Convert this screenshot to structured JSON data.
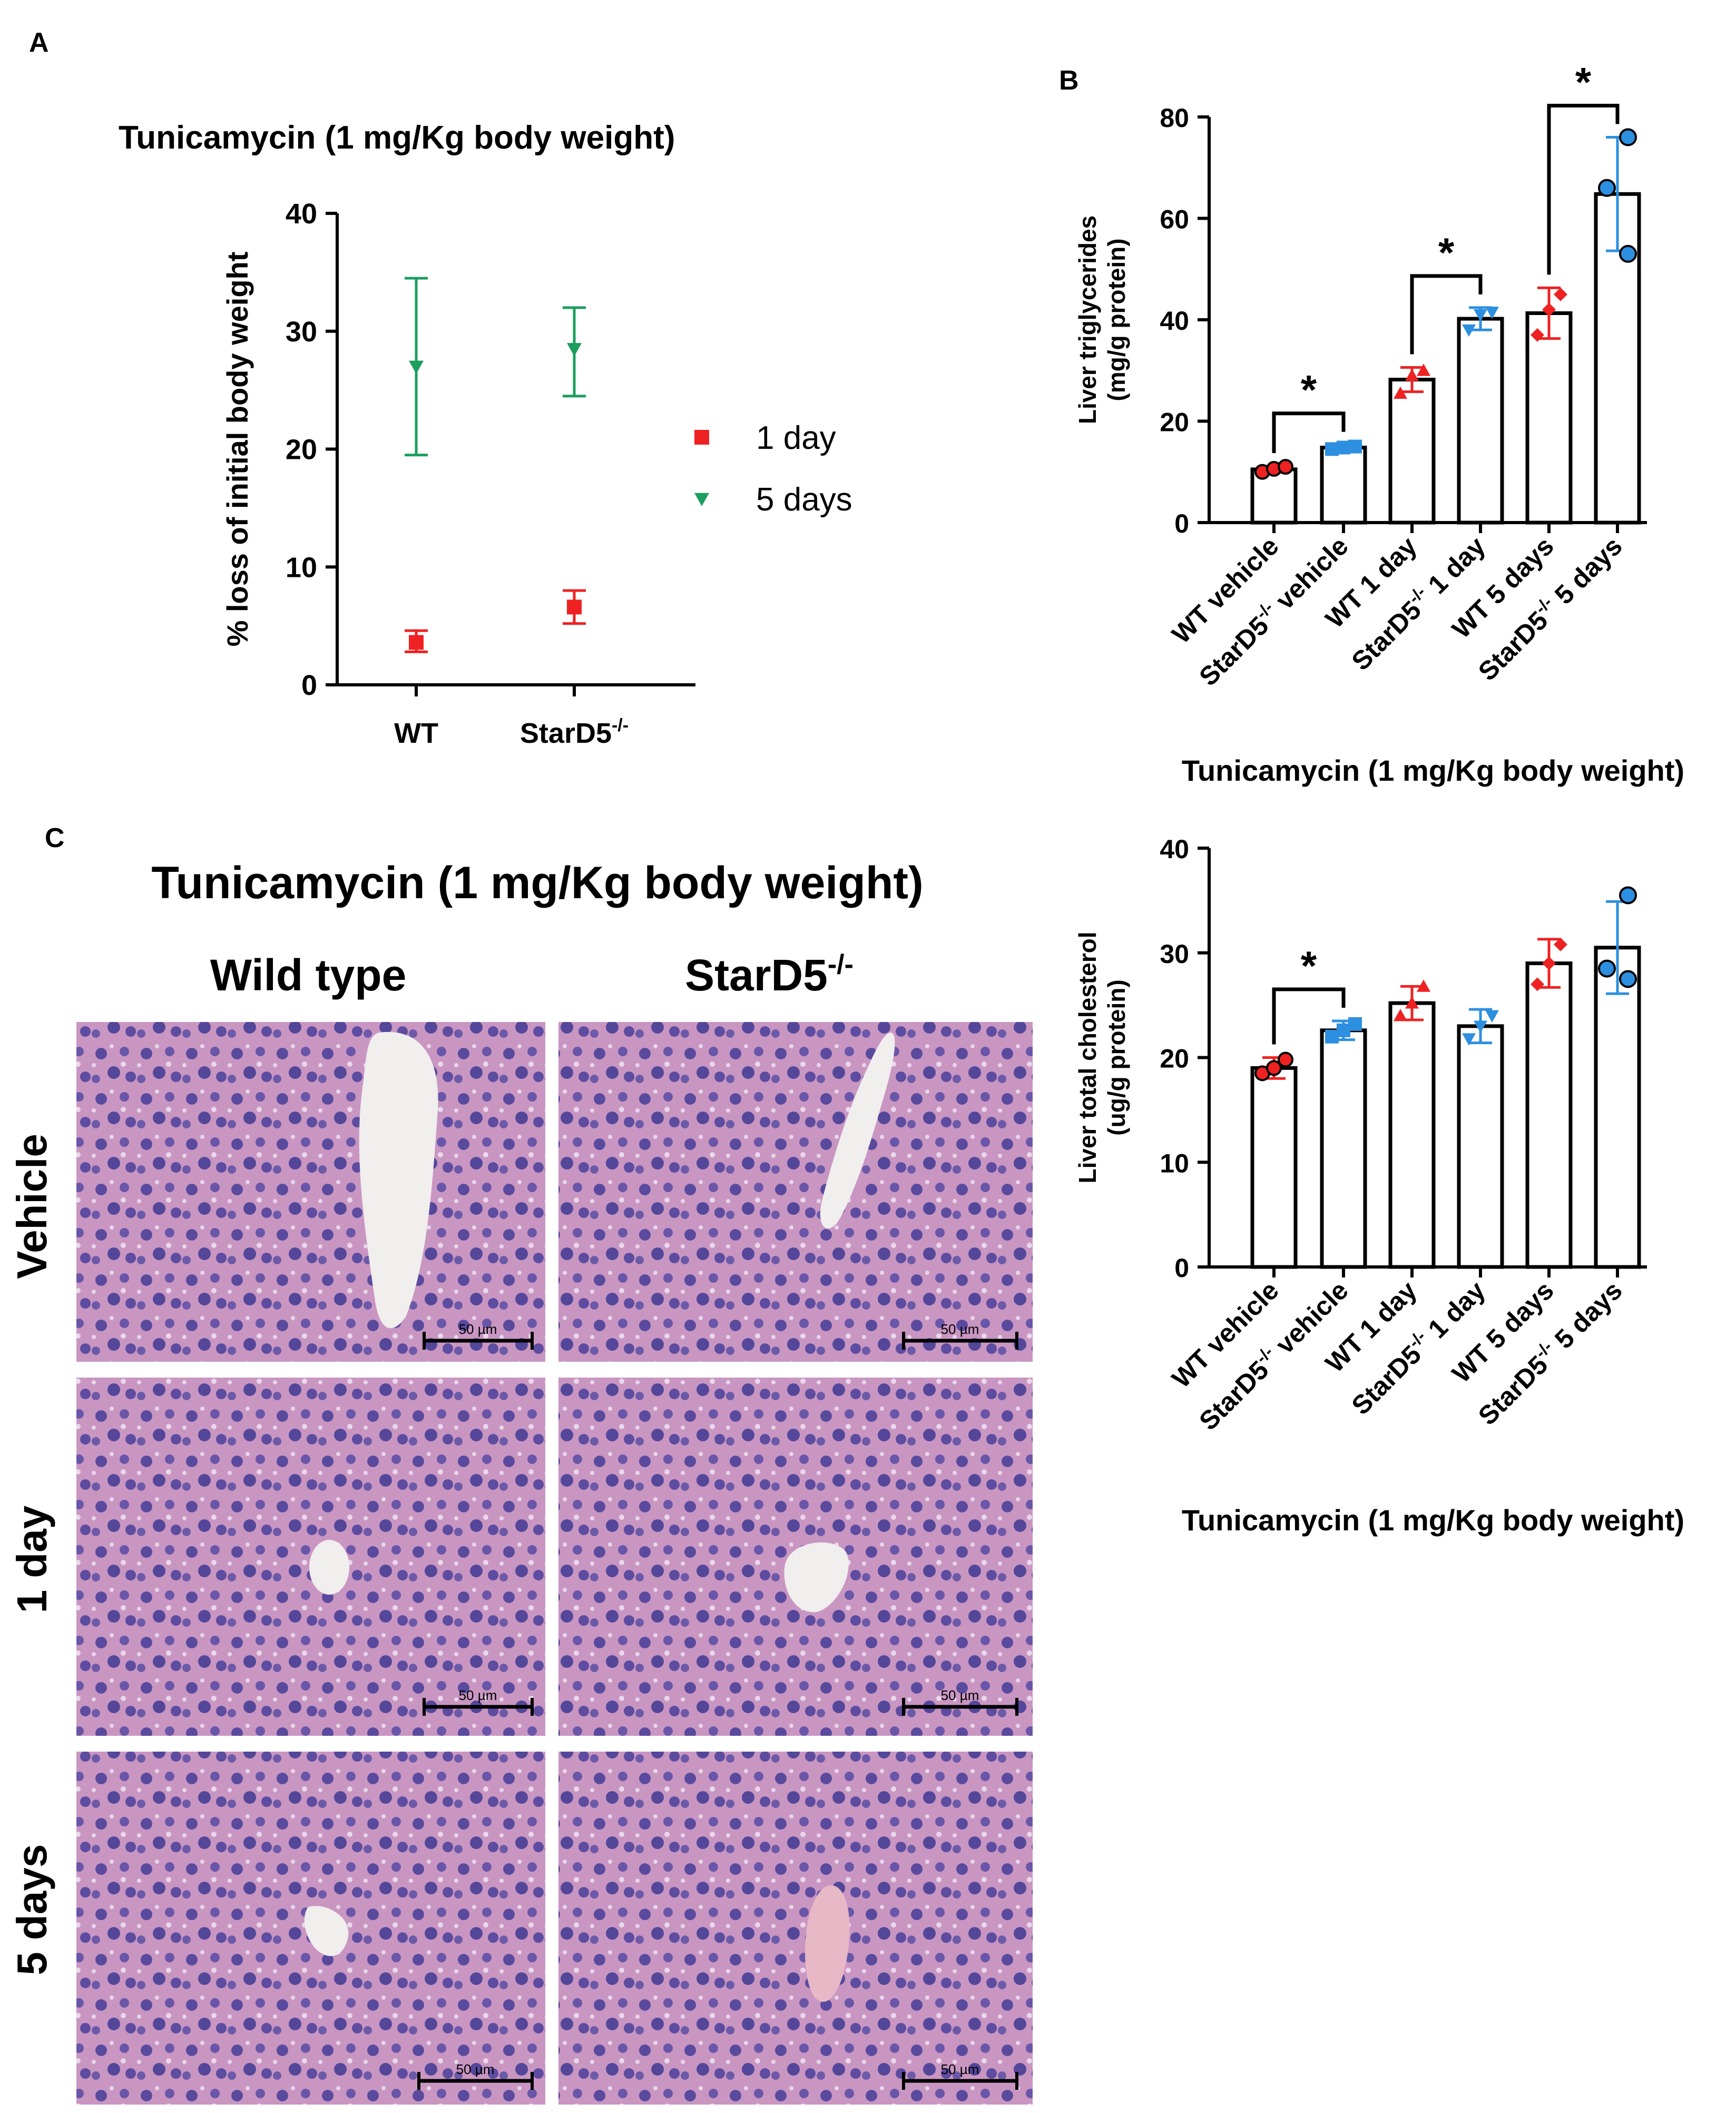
{
  "figure": {
    "panel_letters": [
      "A",
      "B",
      "C"
    ],
    "histology": {
      "title": "Tunicamycin (1 mg/Kg body weight)",
      "columns": [
        "Wild type",
        "StarD5"
      ],
      "column_sup": "-/-",
      "rows": [
        "Vehicle",
        "1 day",
        "5 days"
      ],
      "scale_bar": "50 µm"
    }
  },
  "colors": {
    "red": "#ee2222",
    "green": "#1b9e5e",
    "blue": "#2d8fe0",
    "tissue": "#c98fbf"
  },
  "chart_data": [
    {
      "id": "A",
      "type": "scatter",
      "title": "Tunicamycin (1 mg/Kg body weight)",
      "xlabel": "",
      "ylabel": "% loss of initial body weight",
      "categories": [
        "WT",
        "StarD5"
      ],
      "category_sup": [
        "",
        "-/-"
      ],
      "ylim": [
        0,
        40
      ],
      "yticks": [
        0,
        10,
        20,
        30,
        40
      ],
      "legend": "right",
      "series": [
        {
          "name": "1 day",
          "marker": "square",
          "color": "#ee2222",
          "values": [
            3.6,
            6.6
          ],
          "err_low": [
            2.8,
            5.2
          ],
          "err_high": [
            4.6,
            8.0
          ]
        },
        {
          "name": "5 days",
          "marker": "triangle-down",
          "color": "#1b9e5e",
          "values": [
            27.0,
            28.5
          ],
          "err_low": [
            19.5,
            24.5
          ],
          "err_high": [
            34.5,
            32.0
          ]
        }
      ]
    },
    {
      "id": "B",
      "type": "bar",
      "title": "",
      "xlabel": "Tunicamycin (1 mg/Kg body weight)",
      "ylabel": "Liver triglycerides",
      "ylabel2": "(mg/g protein)",
      "categories": [
        {
          "pre": "WT vehicle",
          "sup": "",
          "post": ""
        },
        {
          "pre": "StarD5",
          "sup": "-/-",
          "post": " vehicle"
        },
        {
          "pre": "WT 1 day",
          "sup": "",
          "post": ""
        },
        {
          "pre": "StarD5",
          "sup": "-/-",
          "post": " 1 day"
        },
        {
          "pre": "WT 5 days",
          "sup": "",
          "post": ""
        },
        {
          "pre": "StarD5",
          "sup": "-/-",
          "post": " 5 days"
        }
      ],
      "ylim": [
        0,
        80
      ],
      "yticks": [
        0,
        20,
        40,
        60,
        80
      ],
      "values": [
        10.5,
        14.8,
        28.2,
        40.2,
        41.3,
        64.8
      ],
      "errors": [
        0.6,
        0.5,
        2.4,
        2.2,
        5.0,
        11.2
      ],
      "points": [
        [
          10.0,
          10.6,
          11.0
        ],
        [
          14.5,
          14.8,
          15.0
        ],
        [
          25.5,
          29.0,
          30.0
        ],
        [
          38.0,
          41.0,
          41.5
        ],
        [
          37.0,
          42.0,
          45.0
        ],
        [
          53.0,
          66.0,
          76.0
        ]
      ],
      "point_colors": [
        "#ee2222",
        "#2d8fe0",
        "#ee2222",
        "#2d8fe0",
        "#ee2222",
        "#2d8fe0"
      ],
      "point_markers": [
        "circle",
        "square",
        "triangle-up",
        "triangle-down",
        "diamond",
        "circle"
      ],
      "significance": [
        {
          "pair": [
            0,
            1
          ],
          "label": "*"
        },
        {
          "pair": [
            2,
            3
          ],
          "label": "*"
        },
        {
          "pair": [
            4,
            5
          ],
          "label": "*"
        }
      ]
    },
    {
      "id": "C",
      "type": "bar",
      "title": "",
      "xlabel": "Tunicamycin (1 mg/Kg body weight)",
      "ylabel": "Liver total cholesterol",
      "ylabel2": "(ug/g protein)",
      "categories": [
        {
          "pre": "WT vehicle",
          "sup": "",
          "post": ""
        },
        {
          "pre": "StarD5",
          "sup": "-/-",
          "post": " vehicle"
        },
        {
          "pre": "WT 1 day",
          "sup": "",
          "post": ""
        },
        {
          "pre": "StarD5",
          "sup": "-/-",
          "post": " 1 day"
        },
        {
          "pre": "WT 5 days",
          "sup": "",
          "post": ""
        },
        {
          "pre": "StarD5",
          "sup": "-/-",
          "post": " 5 days"
        }
      ],
      "ylim": [
        0,
        40
      ],
      "yticks": [
        0,
        10,
        20,
        30,
        40
      ],
      "values": [
        19.0,
        22.6,
        25.2,
        23.0,
        29.0,
        30.5
      ],
      "errors": [
        1.0,
        0.9,
        1.6,
        1.6,
        2.3,
        4.4
      ],
      "points": [
        [
          18.5,
          19.0,
          19.8
        ],
        [
          22.0,
          22.6,
          23.2
        ],
        [
          24.0,
          25.2,
          26.8
        ],
        [
          21.8,
          23.0,
          24.0
        ],
        [
          27.0,
          29.0,
          30.8
        ],
        [
          27.5,
          28.5,
          35.5
        ]
      ],
      "point_colors": [
        "#ee2222",
        "#2d8fe0",
        "#ee2222",
        "#2d8fe0",
        "#ee2222",
        "#2d8fe0"
      ],
      "point_markers": [
        "circle",
        "square",
        "triangle-up",
        "triangle-down",
        "diamond",
        "circle"
      ],
      "significance": [
        {
          "pair": [
            0,
            1
          ],
          "label": "*"
        }
      ]
    }
  ]
}
